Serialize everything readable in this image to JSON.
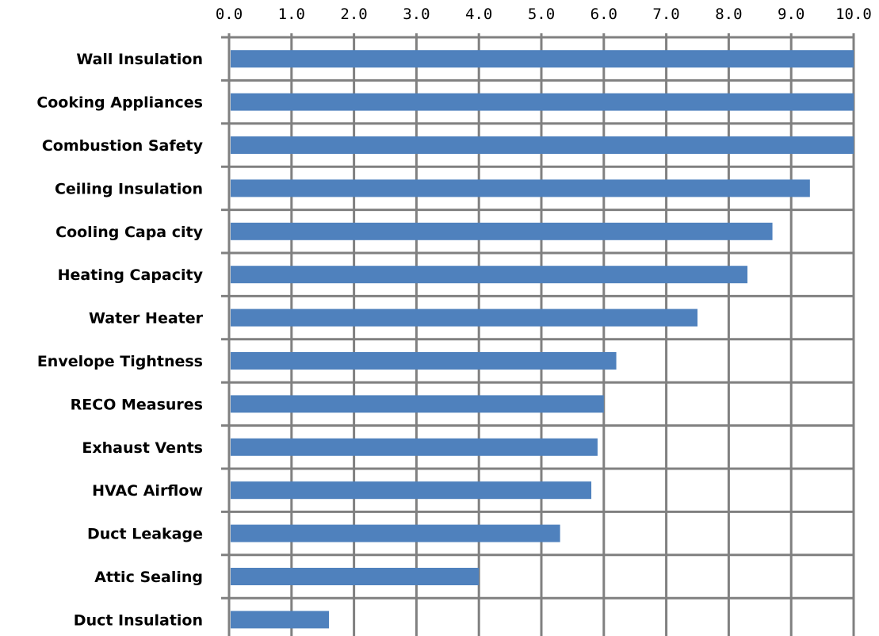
{
  "chart_data": {
    "type": "bar",
    "orientation": "horizontal",
    "categories": [
      "Wall Insulation",
      "Cooking Appliances",
      "Combustion Safety",
      "Ceiling Insulation",
      "Cooling Capa city",
      "Heating Capacity",
      "Water Heater",
      "Envelope Tightness",
      "RECO Measures",
      "Exhaust Vents",
      "HVAC Airflow",
      "Duct Leakage",
      "Attic Sealing",
      "Duct Insulation"
    ],
    "values": [
      10.0,
      10.0,
      10.0,
      9.3,
      8.7,
      8.3,
      7.5,
      6.2,
      6.0,
      5.9,
      5.8,
      5.3,
      4.0,
      1.6
    ],
    "xlim": [
      0,
      10
    ],
    "x_ticks": [
      "0.0",
      "1.0",
      "2.0",
      "3.0",
      "4.0",
      "5.0",
      "6.0",
      "7.0",
      "8.0",
      "9.0",
      "10.0"
    ],
    "x_axis_position": "top",
    "title": "",
    "xlabel": "",
    "ylabel": "",
    "grid": true,
    "legend": "none",
    "colors": {
      "bar": "#4f81bd",
      "grid": "#808080",
      "text": "#000000"
    }
  }
}
